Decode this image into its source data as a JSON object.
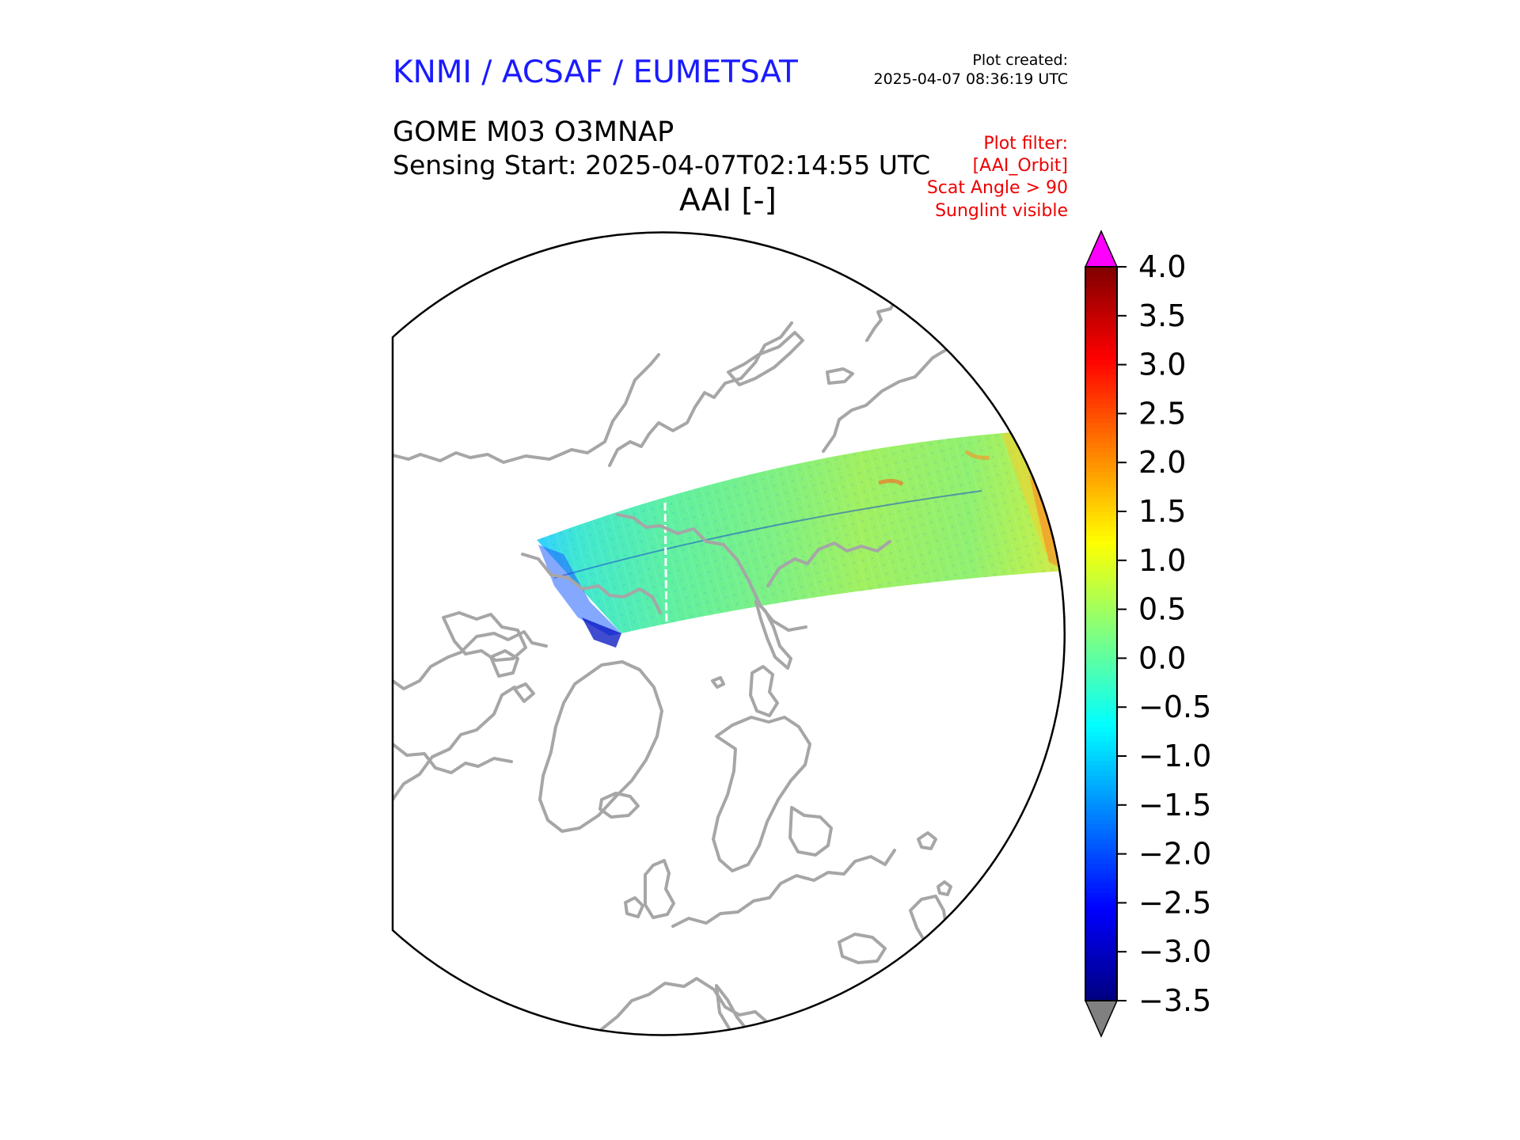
{
  "header": {
    "organization": "KNMI / ACSAF / EUMETSAT",
    "created_label": "Plot created:",
    "created_value": "2025-04-07 08:36:19 UTC",
    "product": "GOME M03 O3MNAP",
    "sensing_start": "Sensing Start: 2025-04-07T02:14:55 UTC",
    "variable": "AAI [-]"
  },
  "filters": [
    "Plot filter:",
    "[AAI_Orbit]",
    "Scat Angle > 90",
    "Sunglint visible"
  ],
  "map": {
    "projection": "north-polar stereographic",
    "coastline_color": "#a6a6a6",
    "swath_description": "single GOME-2 orbit swath, mostly values between -0.5 and 1.5"
  },
  "colorbar": {
    "colormap": "jet",
    "vmin": -3.5,
    "vmax": 4.0,
    "over_color": "#ff00ff",
    "under_color": "#808080",
    "ticks": [
      "4.0",
      "3.5",
      "3.0",
      "2.5",
      "2.0",
      "1.5",
      "1.0",
      "0.5",
      "0.0",
      "−0.5",
      "−1.0",
      "−1.5",
      "−2.0",
      "−2.5",
      "−3.0",
      "−3.5"
    ]
  },
  "colors": {
    "title_blue": "#1a1aff",
    "filter_red": "#ee0000"
  }
}
